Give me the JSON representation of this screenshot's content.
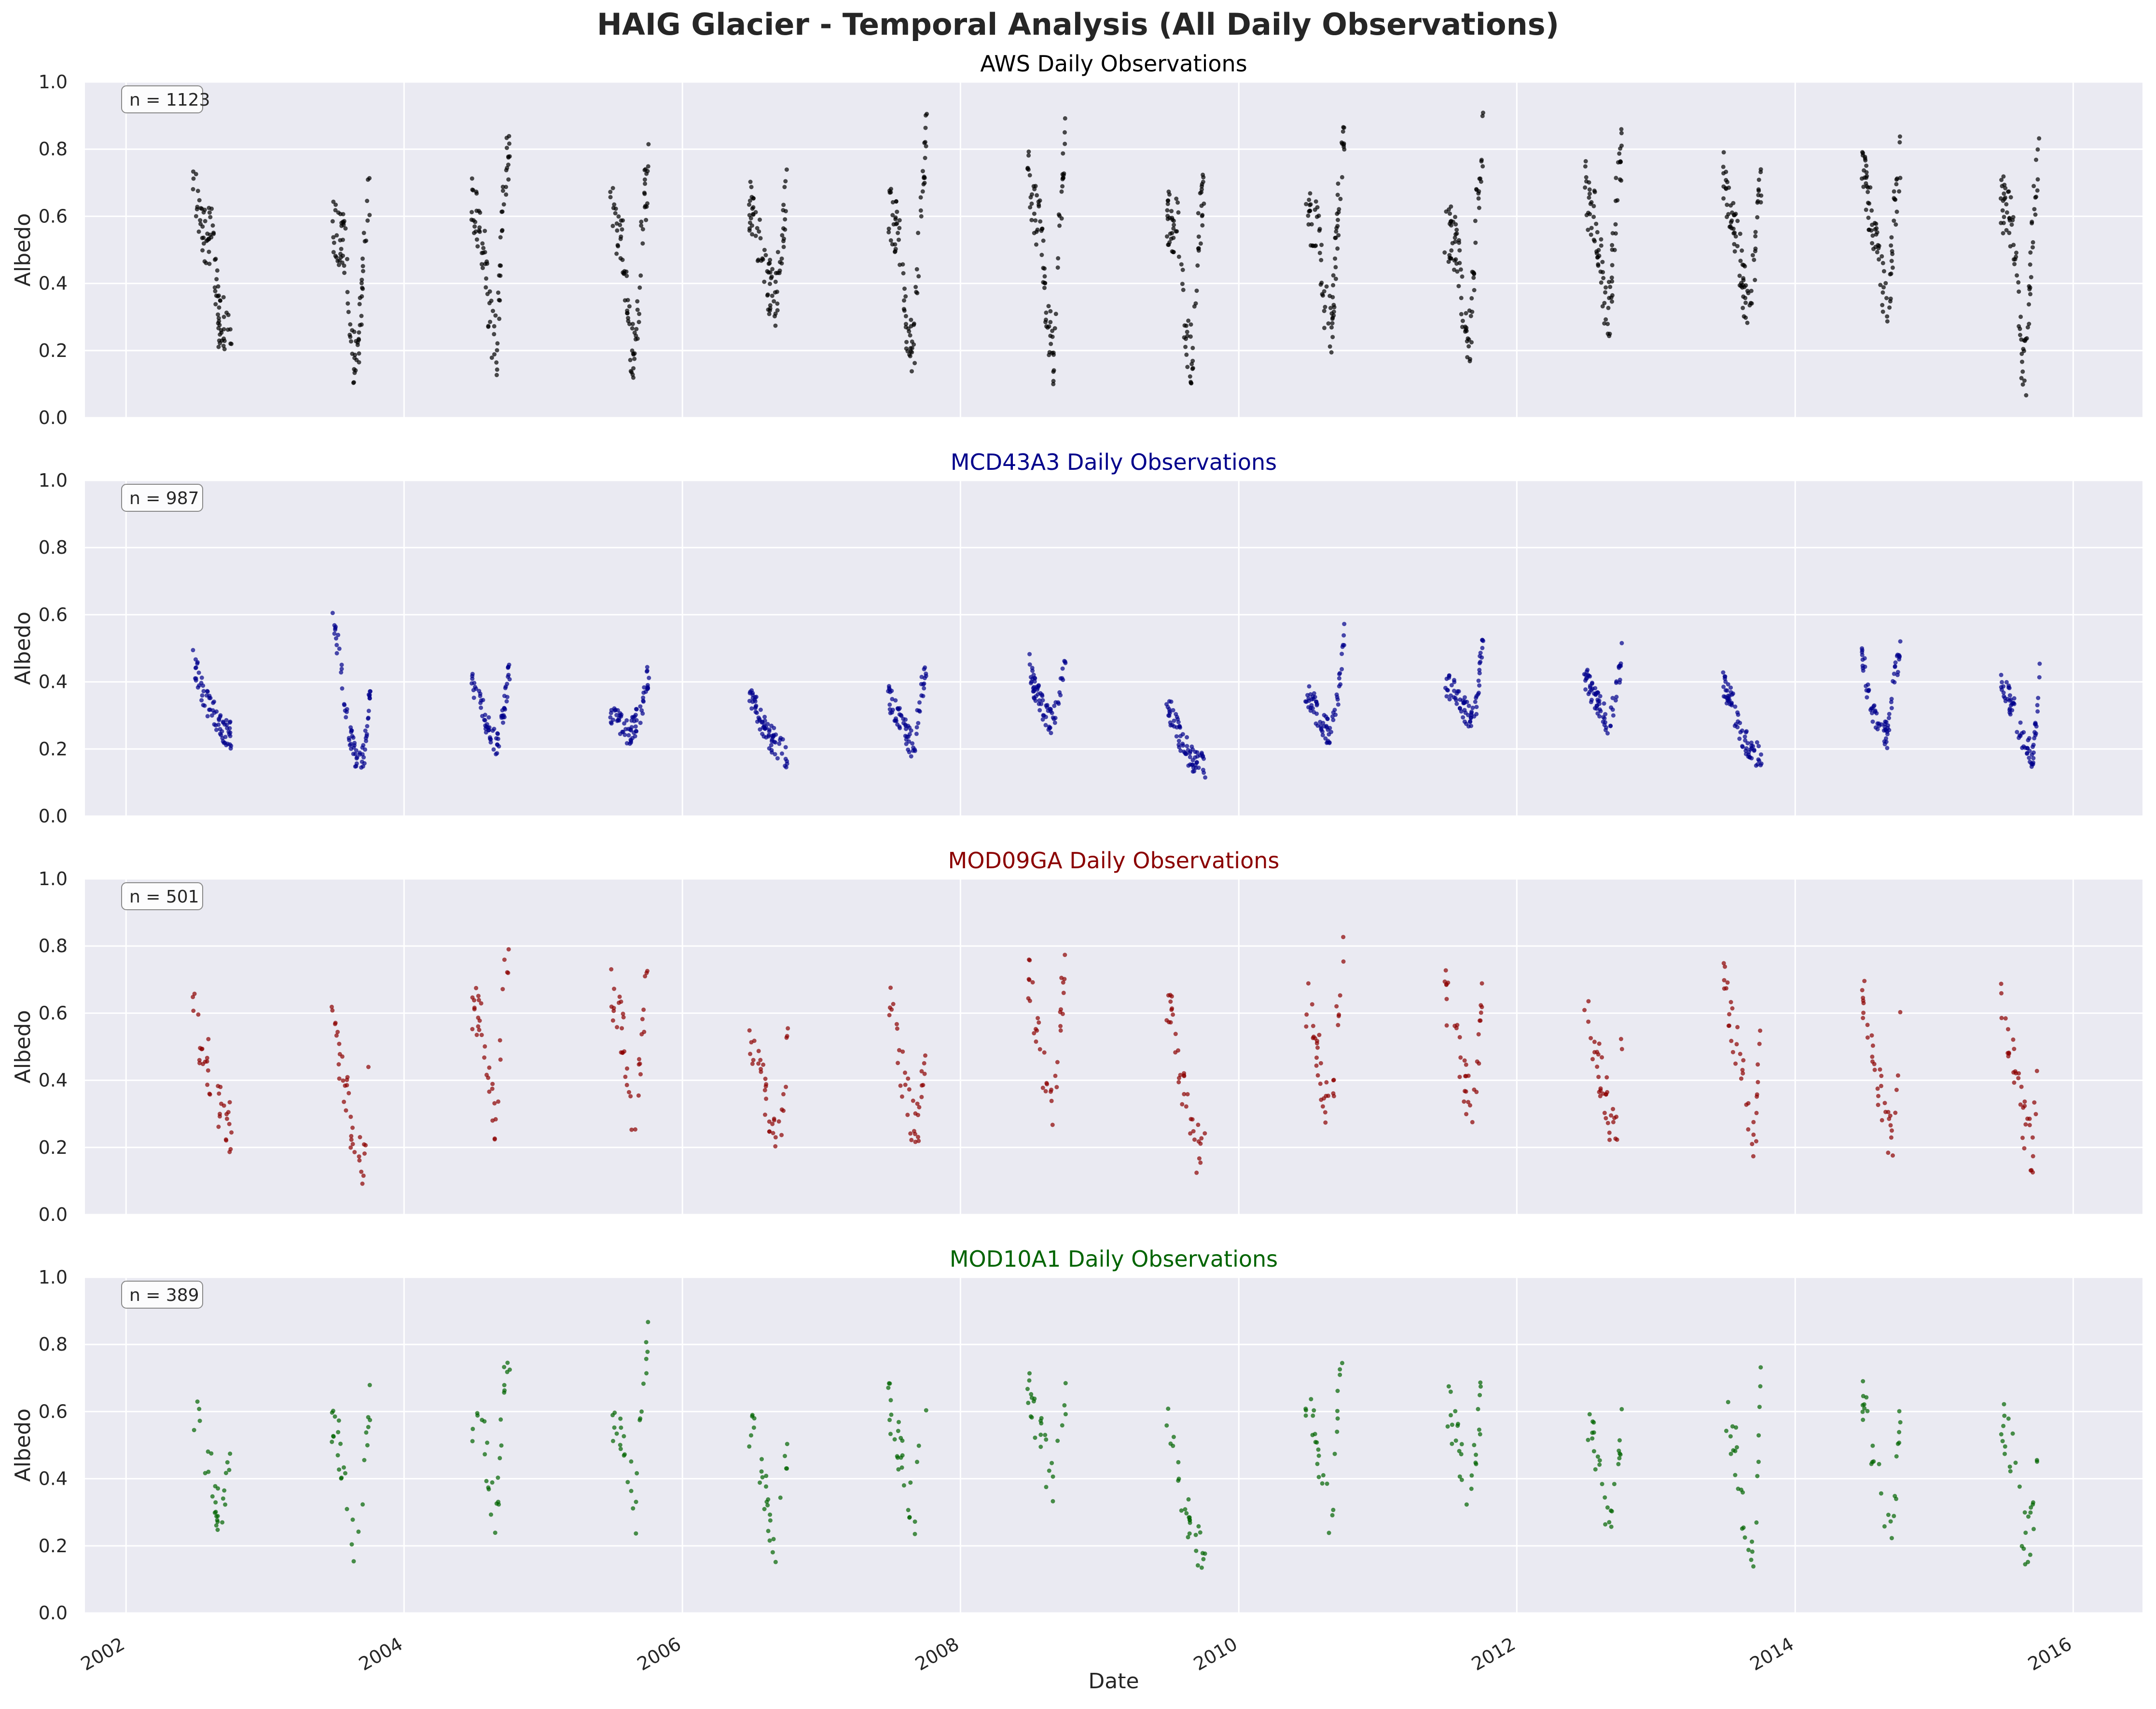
{
  "figure": {
    "title": "HAIG Glacier - Temporal Analysis (All Daily Observations)"
  },
  "chart_data": [
    {
      "type": "scatter",
      "title": "AWS Daily Observations",
      "title_color": "#000000",
      "point_color": "#000000",
      "xlabel": "",
      "ylabel": "Albedo",
      "n_label": "n = 1123",
      "ylim": [
        0,
        1.0
      ],
      "xlim": [
        "2001-09-15",
        "2016-07-01"
      ],
      "yticks": [
        "0.0",
        "0.2",
        "0.4",
        "0.6",
        "0.8",
        "1.0"
      ],
      "season_windows": [
        [
          "2002-06-25",
          "2002-10-05"
        ],
        [
          "2003-06-25",
          "2003-10-05"
        ],
        [
          "2004-06-25",
          "2004-10-05"
        ],
        [
          "2005-06-25",
          "2005-10-05"
        ],
        [
          "2006-06-25",
          "2006-10-05"
        ],
        [
          "2007-06-25",
          "2007-10-05"
        ],
        [
          "2008-06-25",
          "2008-10-05"
        ],
        [
          "2009-06-25",
          "2009-10-05"
        ],
        [
          "2010-06-25",
          "2010-10-05"
        ],
        [
          "2011-06-25",
          "2011-10-05"
        ],
        [
          "2012-06-25",
          "2012-10-05"
        ],
        [
          "2013-06-25",
          "2013-10-05"
        ],
        [
          "2014-06-25",
          "2014-10-05"
        ],
        [
          "2015-06-25",
          "2015-10-05"
        ]
      ],
      "season_profile": [
        [
          0.72,
          0.58,
          0.55,
          0.54,
          0.3,
          0.26,
          0.22
        ],
        [
          0.56,
          0.54,
          0.52,
          0.2,
          0.14,
          0.5,
          0.72
        ],
        [
          0.66,
          0.6,
          0.5,
          0.28,
          0.2,
          0.7,
          0.8
        ],
        [
          0.7,
          0.55,
          0.5,
          0.24,
          0.18,
          0.6,
          0.74
        ],
        [
          0.64,
          0.58,
          0.5,
          0.4,
          0.34,
          0.52,
          0.74
        ],
        [
          0.64,
          0.58,
          0.5,
          0.24,
          0.2,
          0.62,
          0.86
        ],
        [
          0.74,
          0.62,
          0.58,
          0.3,
          0.18,
          0.6,
          0.86
        ],
        [
          0.6,
          0.58,
          0.56,
          0.24,
          0.18,
          0.56,
          0.72
        ],
        [
          0.68,
          0.58,
          0.54,
          0.34,
          0.26,
          0.6,
          0.86
        ],
        [
          0.58,
          0.54,
          0.5,
          0.3,
          0.24,
          0.62,
          0.86
        ],
        [
          0.7,
          0.62,
          0.58,
          0.38,
          0.32,
          0.64,
          0.82
        ],
        [
          0.74,
          0.62,
          0.54,
          0.42,
          0.3,
          0.5,
          0.72
        ],
        [
          0.78,
          0.64,
          0.56,
          0.4,
          0.3,
          0.6,
          0.8
        ],
        [
          0.66,
          0.6,
          0.56,
          0.22,
          0.14,
          0.6,
          0.8
        ]
      ],
      "spread": 0.09,
      "points_per_season": 80
    },
    {
      "type": "scatter",
      "title": "MCD43A3 Daily Observations",
      "title_color": "#00008b",
      "point_color": "#00008b",
      "xlabel": "",
      "ylabel": "Albedo",
      "n_label": "n = 987",
      "ylim": [
        0,
        1.0
      ],
      "xlim": [
        "2001-09-15",
        "2016-07-01"
      ],
      "yticks": [
        "0.0",
        "0.2",
        "0.4",
        "0.6",
        "0.8",
        "1.0"
      ],
      "season_windows": [
        [
          "2002-06-25",
          "2002-10-05"
        ],
        [
          "2003-06-25",
          "2003-10-05"
        ],
        [
          "2004-06-25",
          "2004-10-05"
        ],
        [
          "2005-06-25",
          "2005-10-05"
        ],
        [
          "2006-06-25",
          "2006-10-05"
        ],
        [
          "2007-06-25",
          "2007-10-05"
        ],
        [
          "2008-06-25",
          "2008-10-05"
        ],
        [
          "2009-06-25",
          "2009-10-05"
        ],
        [
          "2010-06-25",
          "2010-10-05"
        ],
        [
          "2011-06-25",
          "2011-10-05"
        ],
        [
          "2012-06-25",
          "2012-10-05"
        ],
        [
          "2013-06-25",
          "2013-10-05"
        ],
        [
          "2014-06-25",
          "2014-10-05"
        ],
        [
          "2015-06-25",
          "2015-10-05"
        ]
      ],
      "season_profile": [
        [
          0.48,
          0.4,
          0.34,
          0.32,
          0.28,
          0.25,
          0.24
        ],
        [
          0.59,
          0.5,
          0.34,
          0.22,
          0.17,
          0.18,
          0.39
        ],
        [
          0.4,
          0.36,
          0.3,
          0.24,
          0.22,
          0.3,
          0.45
        ],
        [
          0.3,
          0.28,
          0.26,
          0.24,
          0.28,
          0.32,
          0.44
        ],
        [
          0.38,
          0.32,
          0.28,
          0.24,
          0.22,
          0.2,
          0.18
        ],
        [
          0.36,
          0.32,
          0.28,
          0.24,
          0.2,
          0.36,
          0.44
        ],
        [
          0.48,
          0.38,
          0.34,
          0.3,
          0.28,
          0.36,
          0.5
        ],
        [
          0.32,
          0.3,
          0.24,
          0.2,
          0.17,
          0.16,
          0.14
        ],
        [
          0.36,
          0.34,
          0.3,
          0.26,
          0.24,
          0.34,
          0.55
        ],
        [
          0.4,
          0.38,
          0.36,
          0.32,
          0.3,
          0.34,
          0.55
        ],
        [
          0.42,
          0.38,
          0.34,
          0.3,
          0.28,
          0.36,
          0.5
        ],
        [
          0.4,
          0.36,
          0.3,
          0.24,
          0.2,
          0.19,
          0.18
        ],
        [
          0.49,
          0.36,
          0.3,
          0.26,
          0.24,
          0.4,
          0.51
        ],
        [
          0.41,
          0.36,
          0.32,
          0.24,
          0.2,
          0.18,
          0.42
        ]
      ],
      "spread": 0.04,
      "points_per_season": 70
    },
    {
      "type": "scatter",
      "title": "MOD09GA Daily Observations",
      "title_color": "#8b0000",
      "point_color": "#8b0000",
      "xlabel": "",
      "ylabel": "Albedo",
      "n_label": "n = 501",
      "ylim": [
        0,
        1.0
      ],
      "xlim": [
        "2001-09-15",
        "2016-07-01"
      ],
      "yticks": [
        "0.0",
        "0.2",
        "0.4",
        "0.6",
        "0.8",
        "1.0"
      ],
      "season_windows": [
        [
          "2002-06-25",
          "2002-10-05"
        ],
        [
          "2003-06-25",
          "2003-10-05"
        ],
        [
          "2004-06-25",
          "2004-10-05"
        ],
        [
          "2005-06-25",
          "2005-10-05"
        ],
        [
          "2006-06-25",
          "2006-10-05"
        ],
        [
          "2007-06-25",
          "2007-10-05"
        ],
        [
          "2008-06-25",
          "2008-10-05"
        ],
        [
          "2009-06-25",
          "2009-10-05"
        ],
        [
          "2010-06-25",
          "2010-10-05"
        ],
        [
          "2011-06-25",
          "2011-10-05"
        ],
        [
          "2012-06-25",
          "2012-10-05"
        ],
        [
          "2013-06-25",
          "2013-10-05"
        ],
        [
          "2014-06-25",
          "2014-10-05"
        ],
        [
          "2015-06-25",
          "2015-10-05"
        ]
      ],
      "season_profile": [
        [
          0.62,
          0.52,
          0.48,
          0.4,
          0.34,
          0.3,
          0.24
        ],
        [
          0.62,
          0.5,
          0.4,
          0.26,
          0.18,
          0.16,
          0.62
        ],
        [
          0.64,
          0.6,
          0.54,
          0.34,
          0.28,
          0.7,
          0.8
        ],
        [
          0.68,
          0.6,
          0.54,
          0.34,
          0.3,
          0.56,
          0.76
        ],
        [
          0.56,
          0.48,
          0.4,
          0.3,
          0.2,
          0.24,
          0.56
        ],
        [
          0.64,
          0.58,
          0.44,
          0.34,
          0.26,
          0.3,
          0.56
        ],
        [
          0.74,
          0.62,
          0.5,
          0.36,
          0.28,
          0.6,
          0.74
        ],
        [
          0.62,
          0.56,
          0.46,
          0.3,
          0.22,
          0.19,
          0.18
        ],
        [
          0.64,
          0.58,
          0.48,
          0.34,
          0.28,
          0.62,
          0.78
        ],
        [
          0.66,
          0.6,
          0.5,
          0.4,
          0.32,
          0.4,
          0.7
        ],
        [
          0.66,
          0.58,
          0.46,
          0.38,
          0.3,
          0.26,
          0.56
        ],
        [
          0.68,
          0.62,
          0.52,
          0.4,
          0.28,
          0.2,
          0.74
        ],
        [
          0.66,
          0.56,
          0.46,
          0.34,
          0.24,
          0.24,
          0.6
        ],
        [
          0.62,
          0.54,
          0.46,
          0.34,
          0.22,
          0.2,
          0.62
        ]
      ],
      "spread": 0.08,
      "points_per_season": 36
    },
    {
      "type": "scatter",
      "title": "MOD10A1 Daily Observations",
      "title_color": "#006400",
      "point_color": "#006400",
      "xlabel": "Date",
      "ylabel": "Albedo",
      "n_label": "n = 389",
      "ylim": [
        0,
        1.0
      ],
      "xlim": [
        "2001-09-15",
        "2016-07-01"
      ],
      "yticks": [
        "0.0",
        "0.2",
        "0.4",
        "0.6",
        "0.8",
        "1.0"
      ],
      "xticks": [
        {
          "date": "2002-01-01",
          "label": "2002"
        },
        {
          "date": "2004-01-01",
          "label": "2004"
        },
        {
          "date": "2006-01-01",
          "label": "2006"
        },
        {
          "date": "2008-01-01",
          "label": "2008"
        },
        {
          "date": "2010-01-01",
          "label": "2010"
        },
        {
          "date": "2012-01-01",
          "label": "2012"
        },
        {
          "date": "2014-01-01",
          "label": "2014"
        },
        {
          "date": "2016-01-01",
          "label": "2016"
        }
      ],
      "season_windows": [
        [
          "2002-06-25",
          "2002-10-05"
        ],
        [
          "2003-06-25",
          "2003-10-05"
        ],
        [
          "2004-06-25",
          "2004-10-05"
        ],
        [
          "2005-06-25",
          "2005-10-05"
        ],
        [
          "2006-06-25",
          "2006-10-05"
        ],
        [
          "2007-06-25",
          "2007-10-05"
        ],
        [
          "2008-06-25",
          "2008-10-05"
        ],
        [
          "2009-06-25",
          "2009-10-05"
        ],
        [
          "2010-06-25",
          "2010-10-05"
        ],
        [
          "2011-06-25",
          "2011-10-05"
        ],
        [
          "2012-06-25",
          "2012-10-05"
        ],
        [
          "2013-06-25",
          "2013-10-05"
        ],
        [
          "2014-06-25",
          "2014-10-05"
        ],
        [
          "2015-06-25",
          "2015-10-05"
        ]
      ],
      "season_profile": [
        [
          0.62,
          0.54,
          0.48,
          0.4,
          0.3,
          0.32,
          0.5
        ],
        [
          0.58,
          0.52,
          0.4,
          0.22,
          0.14,
          0.4,
          0.66
        ],
        [
          0.6,
          0.56,
          0.5,
          0.36,
          0.26,
          0.7,
          0.8
        ],
        [
          0.62,
          0.56,
          0.5,
          0.4,
          0.3,
          0.7,
          0.84
        ],
        [
          0.54,
          0.5,
          0.44,
          0.3,
          0.2,
          0.28,
          0.54
        ],
        [
          0.62,
          0.56,
          0.46,
          0.36,
          0.26,
          0.5,
          0.7
        ],
        [
          0.7,
          0.6,
          0.52,
          0.44,
          0.4,
          0.56,
          0.66
        ],
        [
          0.6,
          0.52,
          0.42,
          0.3,
          0.2,
          0.18,
          0.18
        ],
        [
          0.62,
          0.56,
          0.48,
          0.36,
          0.26,
          0.66,
          0.8
        ],
        [
          0.66,
          0.58,
          0.5,
          0.4,
          0.32,
          0.5,
          0.7
        ],
        [
          0.66,
          0.56,
          0.46,
          0.36,
          0.28,
          0.36,
          0.6
        ],
        [
          0.62,
          0.56,
          0.48,
          0.3,
          0.2,
          0.18,
          0.74
        ],
        [
          0.64,
          0.56,
          0.48,
          0.34,
          0.24,
          0.3,
          0.66
        ],
        [
          0.58,
          0.52,
          0.46,
          0.3,
          0.2,
          0.26,
          0.66
        ]
      ],
      "spread": 0.08,
      "points_per_season": 28
    }
  ]
}
